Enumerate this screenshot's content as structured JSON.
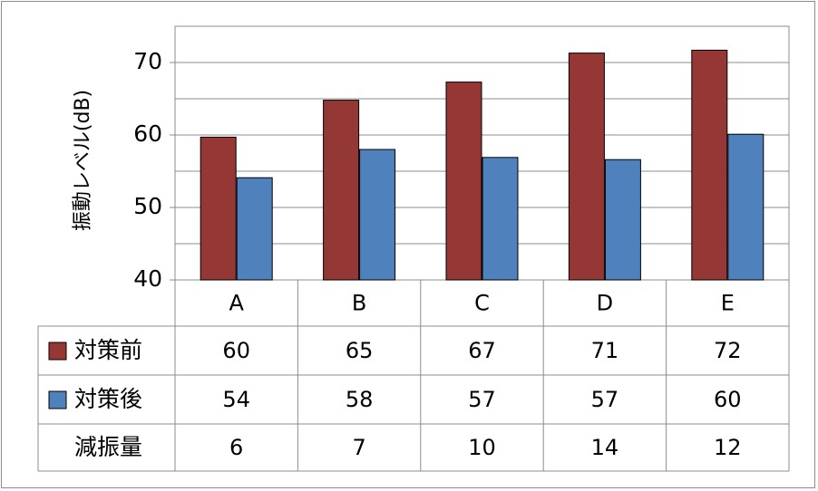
{
  "chart_data": {
    "type": "bar",
    "ylabel": "振動レベル(dB)",
    "ylim": [
      40,
      75
    ],
    "yticks": [
      40,
      50,
      60,
      70
    ],
    "grid": true,
    "categories": [
      "A",
      "B",
      "C",
      "D",
      "E"
    ],
    "series": [
      {
        "name": "対策前",
        "values": [
          60,
          65,
          67,
          71,
          72
        ],
        "plot_values": [
          59.7,
          64.8,
          67.3,
          71.3,
          71.7
        ],
        "color": "#953735"
      },
      {
        "name": "対策後",
        "values": [
          54,
          58,
          57,
          57,
          60
        ],
        "plot_values": [
          54.1,
          58.0,
          56.9,
          56.6,
          60.1
        ],
        "color": "#4f81bd"
      }
    ],
    "table": {
      "extra_row": {
        "name": "減振量",
        "values": [
          "6",
          "7",
          "10",
          "14",
          "12"
        ]
      }
    }
  }
}
